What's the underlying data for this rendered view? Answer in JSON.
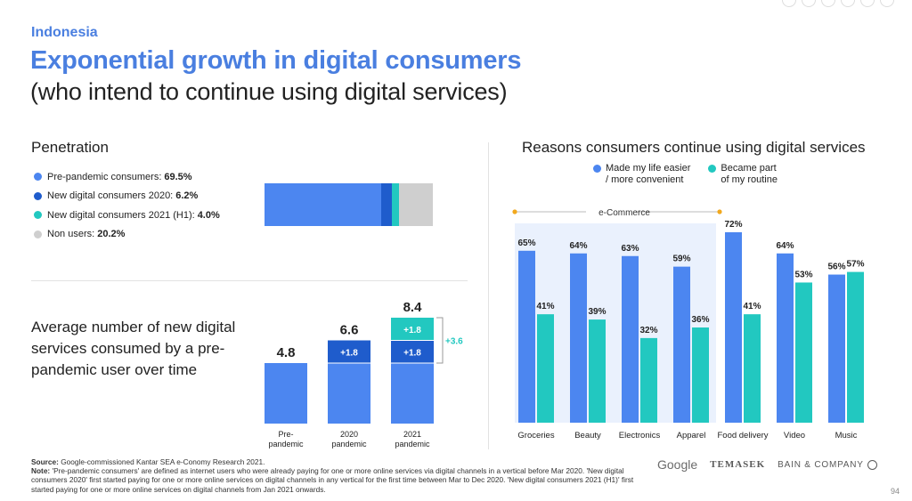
{
  "header": {
    "country": "Indonesia",
    "title": "Exponential growth in digital consumers",
    "subtitle": "(who intend to continue using digital services)"
  },
  "colors": {
    "blue": "#4c86f0",
    "dark_blue": "#1f5ccc",
    "teal": "#22c8c0",
    "grey": "#cfcfcf",
    "title_blue": "#4a7fe0",
    "ecommerce_bg": "#eaf1fd",
    "ecommerce_marker": "#f2a81d"
  },
  "chart_data": [
    {
      "type": "bar",
      "orientation": "horizontal-stacked",
      "title": "Penetration",
      "series": [
        {
          "name": "Pre-pandemic consumers:",
          "value_label": "69.5%",
          "value": 69.5,
          "color": "#4c86f0"
        },
        {
          "name": "New digital consumers 2020:",
          "value_label": "6.2%",
          "value": 6.2,
          "color": "#1f5ccc"
        },
        {
          "name": "New digital consumers 2021 (H1):",
          "value_label": "4.0%",
          "value": 4.0,
          "color": "#22c8c0"
        },
        {
          "name": "Non users:",
          "value_label": "20.2%",
          "value": 20.2,
          "color": "#cfcfcf"
        }
      ]
    },
    {
      "type": "bar",
      "orientation": "vertical-stacked",
      "title": "Average number of new digital services consumed by a pre-pandemic user over time",
      "categories": [
        "Pre-\npandemic",
        "2020\npandemic",
        "2021\npandemic"
      ],
      "totals": [
        4.8,
        6.6,
        8.4
      ],
      "total_labels": [
        "4.8",
        "6.6",
        "8.4"
      ],
      "series": [
        {
          "values": [
            4.8,
            4.8,
            4.8
          ],
          "color": "#4c86f0"
        },
        {
          "values": [
            0,
            1.8,
            1.8
          ],
          "labels": [
            "",
            "+1.8",
            "+1.8"
          ],
          "color": "#1f5ccc"
        },
        {
          "values": [
            0,
            0,
            1.8
          ],
          "labels": [
            "",
            "",
            "+1.8"
          ],
          "color": "#22c8c0"
        }
      ],
      "bracket_label": "+3.6",
      "ylim": [
        0,
        8.4
      ]
    },
    {
      "type": "bar",
      "orientation": "vertical-grouped",
      "title": "Reasons consumers continue using digital services",
      "categories": [
        "Groceries",
        "Beauty",
        "Electronics",
        "Apparel",
        "Food delivery",
        "Video",
        "Music"
      ],
      "series": [
        {
          "name": "Made my life easier\n/ more convenient",
          "values": [
            65,
            64,
            63,
            59,
            72,
            64,
            56
          ],
          "color": "#4c86f0"
        },
        {
          "name": "Became part\nof my routine",
          "values": [
            41,
            39,
            32,
            36,
            41,
            53,
            57
          ],
          "color": "#22c8c0"
        }
      ],
      "group_label": "e-Commerce",
      "group_categories": [
        "Groceries",
        "Beauty",
        "Electronics",
        "Apparel"
      ],
      "ylim": [
        0,
        72
      ],
      "value_suffix": "%"
    }
  ],
  "footer": {
    "source_label": "Source:",
    "source_text": " Google-commissioned Kantar SEA e-Conomy Research 2021.",
    "note_label": "Note:",
    "note_text": " 'Pre-pandemic consumers' are defined as internet users who were already paying for one or more online services via digital channels in a vertical before Mar 2020. 'New digital consumers 2020' first started paying for one or more online services on digital channels in any vertical for the first time between Mar to Dec 2020. 'New digital consumers 2021 (H1)' first started paying for one or more online services on digital channels from Jan 2021 onwards."
  },
  "logos": {
    "google": "Google",
    "temasek": "TEMASEK",
    "bain": "BAIN & COMPANY"
  },
  "page_number": "94"
}
